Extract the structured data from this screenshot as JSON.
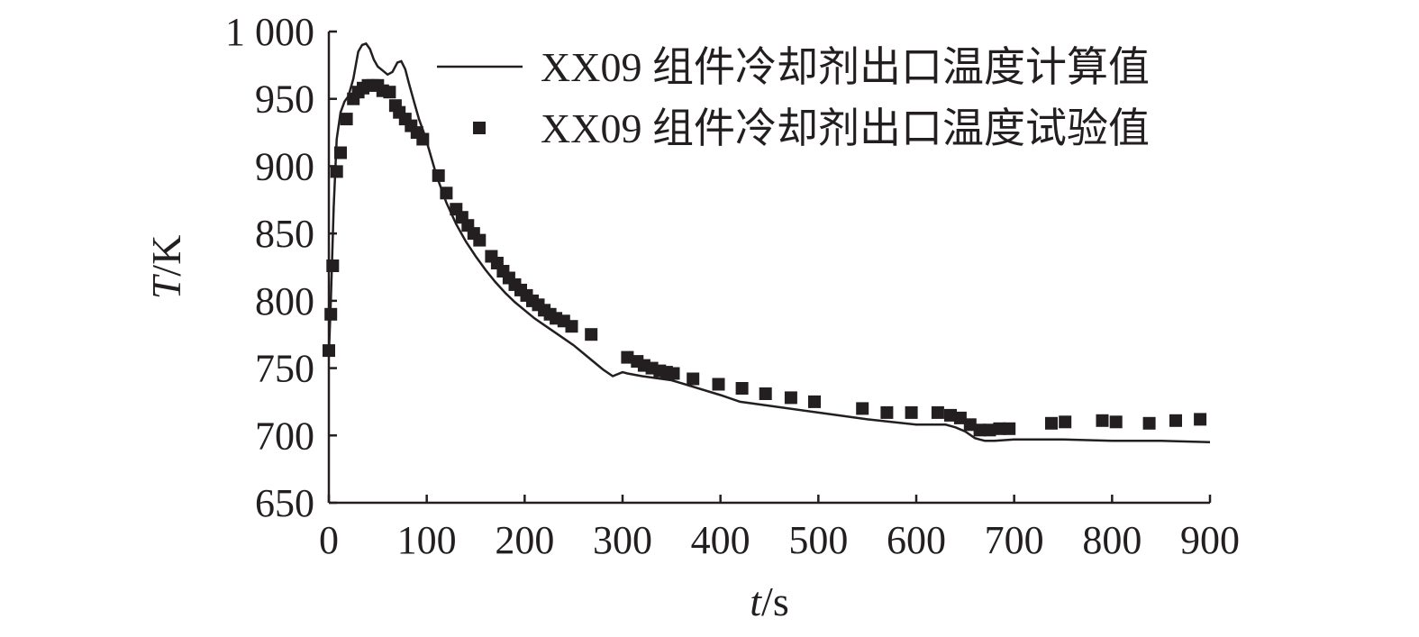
{
  "chart_data": {
    "type": "line",
    "xlabel_var": "t",
    "xlabel_unit": "/s",
    "ylabel_var": "T",
    "ylabel_unit": "/K",
    "xlim": [
      0,
      900
    ],
    "ylim": [
      650,
      1000
    ],
    "x_ticks": [
      0,
      100,
      200,
      300,
      400,
      500,
      600,
      700,
      800,
      900
    ],
    "x_tick_labels": [
      "0",
      "100",
      "200",
      "300",
      "400",
      "500",
      "600",
      "700",
      "800",
      "900"
    ],
    "y_ticks": [
      650,
      700,
      750,
      800,
      850,
      900,
      950,
      1000
    ],
    "y_tick_labels": [
      "650",
      "700",
      "750",
      "800",
      "850",
      "900",
      "950",
      "1 000"
    ],
    "grid": false,
    "legend_position": "top-right",
    "color": "#231f20",
    "series": [
      {
        "name": "XX09 组件冷却剂出口温度计算值",
        "style": "line",
        "x": [
          0,
          2,
          5,
          8,
          12,
          16,
          20,
          25,
          30,
          34,
          38,
          42,
          46,
          50,
          55,
          60,
          65,
          70,
          74,
          78,
          82,
          87,
          92,
          97,
          100,
          110,
          120,
          130,
          140,
          150,
          160,
          170,
          180,
          190,
          200,
          210,
          220,
          230,
          240,
          250,
          260,
          270,
          280,
          290,
          300,
          305,
          320,
          350,
          400,
          420,
          450,
          500,
          550,
          600,
          630,
          640,
          650,
          660,
          665,
          670,
          680,
          700,
          750,
          800,
          850,
          900
        ],
        "y": [
          760,
          800,
          870,
          920,
          940,
          948,
          952,
          965,
          985,
          990,
          991,
          987,
          979,
          974,
          971,
          968,
          970,
          977,
          978,
          972,
          961,
          948,
          935,
          925,
          918,
          893,
          873,
          857,
          844,
          833,
          823,
          814,
          806,
          799,
          793,
          787,
          782,
          777,
          772,
          767,
          761,
          755,
          749,
          744,
          747,
          746,
          744,
          741,
          730,
          725,
          722,
          717,
          712,
          708,
          708,
          706,
          703,
          698,
          697,
          696,
          696,
          697,
          697,
          696,
          696,
          695
        ]
      },
      {
        "name": "XX09 组件冷却剂出口温度试验值",
        "style": "marker-square",
        "x": [
          0,
          2,
          4,
          8,
          12,
          18,
          25,
          30,
          35,
          40,
          45,
          50,
          55,
          62,
          68,
          72,
          78,
          84,
          90,
          96,
          112,
          120,
          130,
          136,
          142,
          148,
          154,
          166,
          172,
          178,
          184,
          190,
          196,
          202,
          208,
          214,
          220,
          226,
          232,
          240,
          248,
          268,
          305,
          315,
          322,
          330,
          338,
          345,
          352,
          372,
          398,
          422,
          446,
          472,
          496,
          545,
          570,
          595,
          622,
          635,
          645,
          655,
          665,
          675,
          685,
          695,
          738,
          752,
          790,
          804,
          838,
          865,
          890
        ],
        "y": [
          763,
          790,
          826,
          896,
          910,
          935,
          950,
          955,
          958,
          960,
          960,
          960,
          956,
          955,
          945,
          940,
          935,
          930,
          925,
          920,
          893,
          880,
          868,
          862,
          856,
          850,
          845,
          833,
          828,
          822,
          817,
          812,
          808,
          804,
          800,
          797,
          793,
          790,
          787,
          785,
          781,
          775,
          758,
          755,
          752,
          750,
          748,
          747,
          746,
          742,
          738,
          735,
          731,
          728,
          725,
          720,
          717,
          717,
          717,
          715,
          713,
          708,
          704,
          704,
          705,
          705,
          709,
          710,
          711,
          710,
          709,
          711,
          712
        ]
      }
    ]
  }
}
